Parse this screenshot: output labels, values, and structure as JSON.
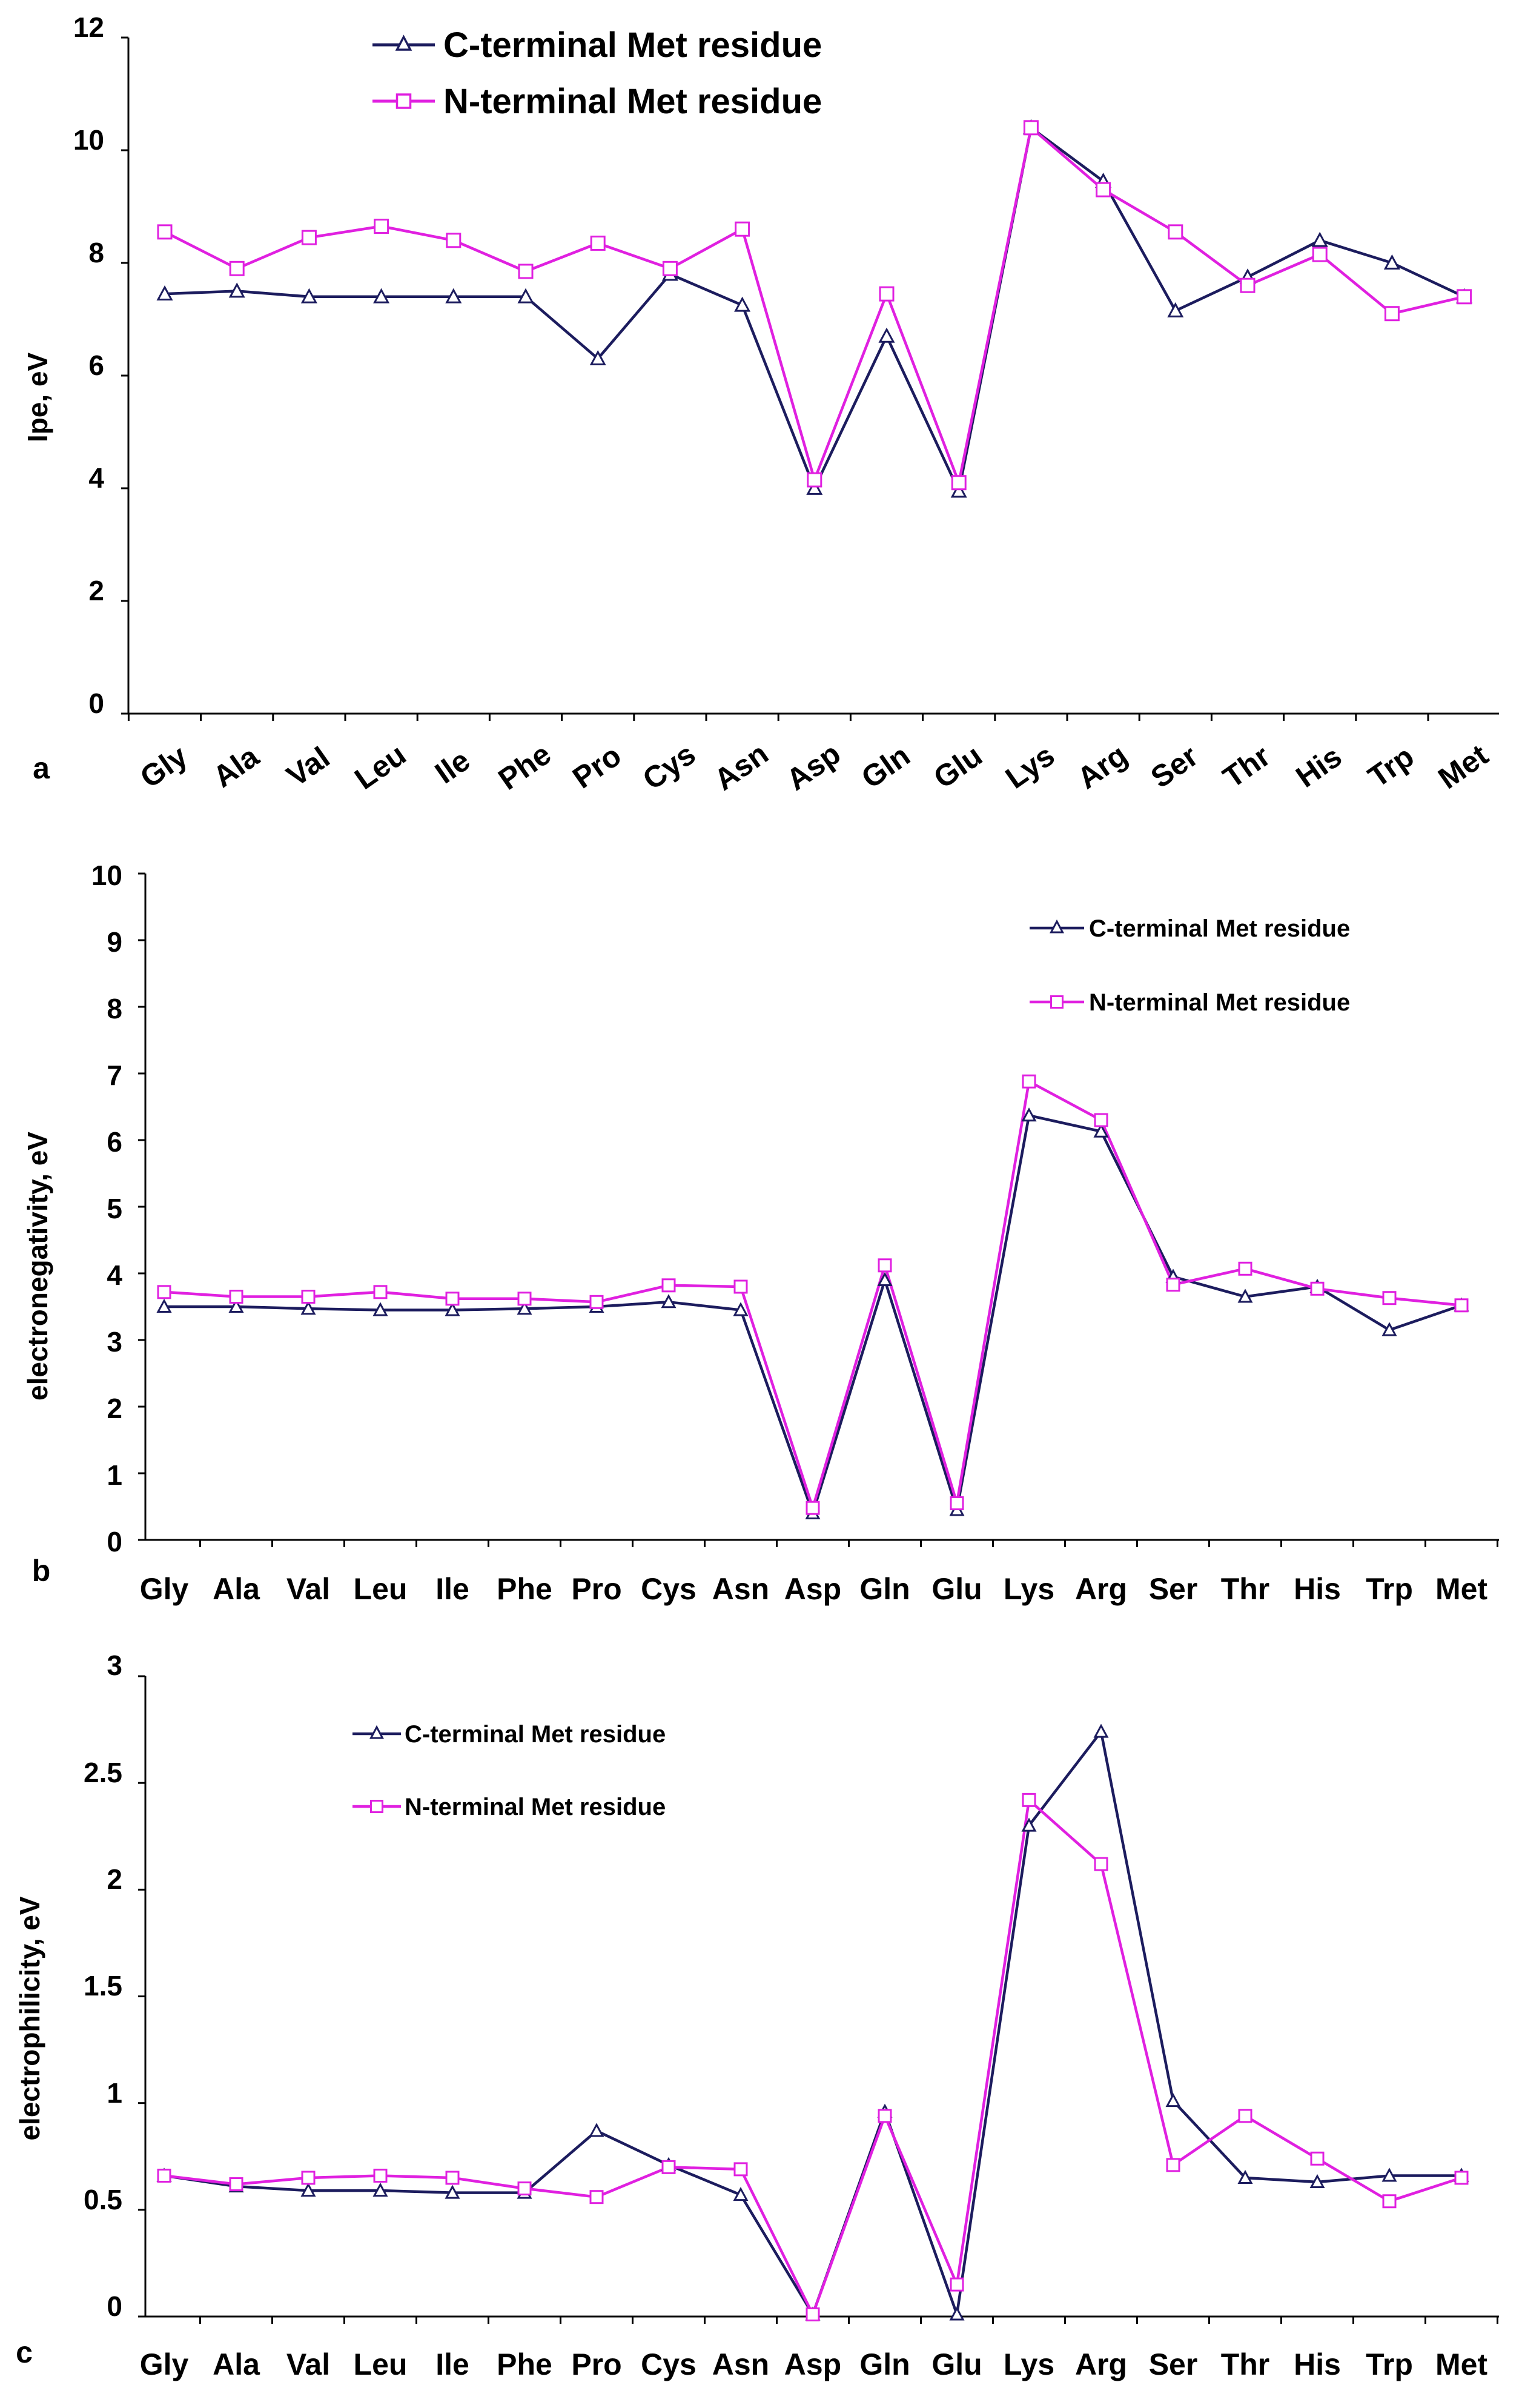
{
  "colors": {
    "c_terminal": "#1c1c5e",
    "n_terminal": "#e020e0",
    "axis": "#000000",
    "background": "#ffffff"
  },
  "chart_data": [
    {
      "type": "line",
      "panel": "a",
      "title": "",
      "xlabel": "",
      "ylabel": "Ipe, eV",
      "ylim": [
        0,
        12
      ],
      "yticks": [
        "0",
        "2",
        "4",
        "6",
        "8",
        "10",
        "12"
      ],
      "grid": false,
      "legend_position": "top-center",
      "x_tick_rotation": "rotated",
      "categories": [
        "Gly",
        "Ala",
        "Val",
        "Leu",
        "Ile",
        "Phe",
        "Pro",
        "Cys",
        "Asn",
        "Asp",
        "Gln",
        "Glu",
        "Lys",
        "Arg",
        "Ser",
        "Thr",
        "His",
        "Trp",
        "Met"
      ],
      "series": [
        {
          "name": "C-terminal Met residue",
          "marker": "triangle",
          "values": [
            7.45,
            7.5,
            7.4,
            7.4,
            7.4,
            7.4,
            6.3,
            7.8,
            7.25,
            4.0,
            6.7,
            3.95,
            10.4,
            9.45,
            7.15,
            7.75,
            8.4,
            8.0,
            7.4
          ]
        },
        {
          "name": "N-terminal Met residue",
          "marker": "square",
          "values": [
            8.55,
            7.9,
            8.45,
            8.65,
            8.4,
            7.85,
            8.35,
            7.9,
            8.6,
            4.15,
            7.45,
            4.1,
            10.4,
            9.3,
            8.55,
            7.6,
            8.15,
            7.1,
            7.4
          ]
        }
      ]
    },
    {
      "type": "line",
      "panel": "b",
      "title": "",
      "xlabel": "",
      "ylabel": "electronegativity, eV",
      "ylim": [
        0,
        10
      ],
      "yticks": [
        "0",
        "1",
        "2",
        "3",
        "4",
        "5",
        "6",
        "7",
        "8",
        "9",
        "10"
      ],
      "grid": false,
      "legend_position": "top-right",
      "x_tick_rotation": "none",
      "categories": [
        "Gly",
        "Ala",
        "Val",
        "Leu",
        "Ile",
        "Phe",
        "Pro",
        "Cys",
        "Asn",
        "Asp",
        "Gln",
        "Glu",
        "Lys",
        "Arg",
        "Ser",
        "Thr",
        "His",
        "Trp",
        "Met"
      ],
      "series": [
        {
          "name": "C-terminal Met residue",
          "marker": "triangle",
          "values": [
            3.5,
            3.5,
            3.47,
            3.45,
            3.45,
            3.47,
            3.5,
            3.57,
            3.45,
            0.4,
            3.9,
            0.45,
            6.37,
            6.13,
            3.95,
            3.65,
            3.8,
            3.15,
            3.52
          ]
        },
        {
          "name": "N-terminal Met residue",
          "marker": "square",
          "values": [
            3.72,
            3.65,
            3.65,
            3.72,
            3.62,
            3.62,
            3.57,
            3.82,
            3.8,
            0.48,
            4.12,
            0.55,
            6.88,
            6.3,
            3.83,
            4.07,
            3.77,
            3.63,
            3.52
          ]
        }
      ]
    },
    {
      "type": "line",
      "panel": "c",
      "title": "",
      "xlabel": "",
      "ylabel": "electrophilicity, eV",
      "ylim": [
        0,
        3
      ],
      "yticks": [
        "0",
        "0.5",
        "1",
        "1.5",
        "2",
        "2.5",
        "3"
      ],
      "grid": false,
      "legend_position": "top-left",
      "x_tick_rotation": "none",
      "categories": [
        "Gly",
        "Ala",
        "Val",
        "Leu",
        "Ile",
        "Phe",
        "Pro",
        "Cys",
        "Asn",
        "Asp",
        "Gln",
        "Glu",
        "Lys",
        "Arg",
        "Ser",
        "Thr",
        "His",
        "Trp",
        "Met"
      ],
      "series": [
        {
          "name": "C-terminal Met residue",
          "marker": "triangle",
          "values": [
            0.66,
            0.61,
            0.59,
            0.59,
            0.58,
            0.58,
            0.87,
            0.71,
            0.57,
            0.01,
            0.96,
            0.01,
            2.3,
            2.74,
            1.01,
            0.65,
            0.63,
            0.66,
            0.66
          ]
        },
        {
          "name": "N-terminal Met residue",
          "marker": "square",
          "values": [
            0.66,
            0.62,
            0.65,
            0.66,
            0.65,
            0.6,
            0.56,
            0.7,
            0.69,
            0.01,
            0.94,
            0.15,
            2.42,
            2.12,
            0.71,
            0.94,
            0.74,
            0.54,
            0.65
          ]
        }
      ]
    }
  ]
}
